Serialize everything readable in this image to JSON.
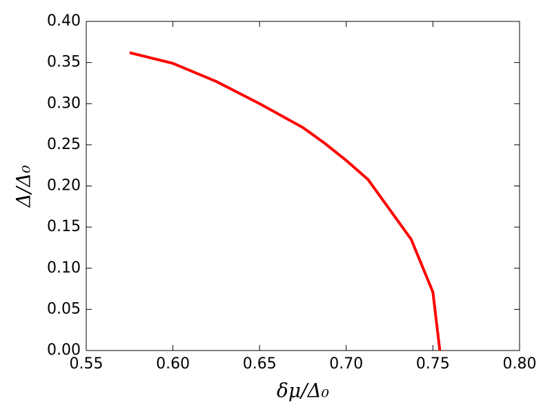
{
  "chart_data": {
    "type": "line",
    "xlabel": "δμ/Δ₀",
    "ylabel": "Δ/Δ₀",
    "x": [
      0.575,
      0.6,
      0.625,
      0.65,
      0.675,
      0.6875,
      0.7,
      0.7125,
      0.7375,
      0.75,
      0.754
    ],
    "series": [
      {
        "color": "#ff0000",
        "values": [
          0.362,
          0.349,
          0.327,
          0.3,
          0.271,
          0.252,
          0.231,
          0.208,
          0.135,
          0.071,
          0.0
        ]
      }
    ],
    "xlim": [
      0.55,
      0.8
    ],
    "xticks": [
      {
        "value": 0.55,
        "label": "0.55"
      },
      {
        "value": 0.6,
        "label": "0.60"
      },
      {
        "value": 0.65,
        "label": "0.65"
      },
      {
        "value": 0.7,
        "label": "0.70"
      },
      {
        "value": 0.75,
        "label": "0.75"
      },
      {
        "value": 0.8,
        "label": "0.80"
      }
    ],
    "ylim": [
      0.0,
      0.4
    ],
    "yticks": [
      {
        "value": 0.0,
        "label": "0.00"
      },
      {
        "value": 0.05,
        "label": "0.05"
      },
      {
        "value": 0.1,
        "label": "0.10"
      },
      {
        "value": 0.15,
        "label": "0.15"
      },
      {
        "value": 0.2,
        "label": "0.20"
      },
      {
        "value": 0.25,
        "label": "0.25"
      },
      {
        "value": 0.3,
        "label": "0.30"
      },
      {
        "value": 0.35,
        "label": "0.35"
      },
      {
        "value": 0.4,
        "label": "0.40"
      }
    ],
    "grid": false
  }
}
